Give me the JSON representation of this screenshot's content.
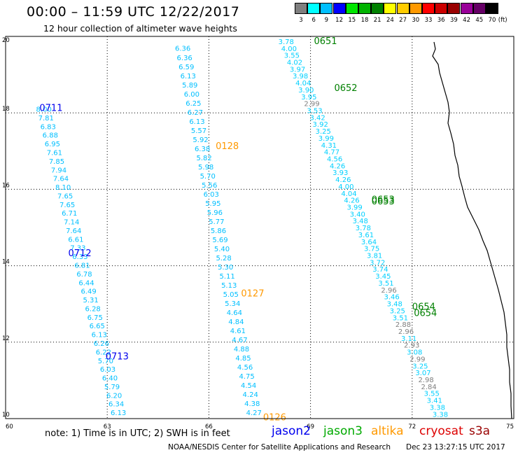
{
  "header": {
    "title": "00:00 – 11:59 UTC 12/22/2017",
    "subtitle": "12 hour collection of altimeter wave heights"
  },
  "color_scale": {
    "unit": "(ft)",
    "items": [
      {
        "label": "3",
        "color": "#7f7f7f"
      },
      {
        "label": "6",
        "color": "#00ffff"
      },
      {
        "label": "9",
        "color": "#00bfff"
      },
      {
        "label": "12",
        "color": "#0000ff"
      },
      {
        "label": "15",
        "color": "#00e600"
      },
      {
        "label": "18",
        "color": "#00b300"
      },
      {
        "label": "21",
        "color": "#008000"
      },
      {
        "label": "24",
        "color": "#ffff00"
      },
      {
        "label": "27",
        "color": "#ffcc00"
      },
      {
        "label": "30",
        "color": "#ff9900"
      },
      {
        "label": "33",
        "color": "#ff0000"
      },
      {
        "label": "36",
        "color": "#cc0000"
      },
      {
        "label": "39",
        "color": "#990000"
      },
      {
        "label": "42",
        "color": "#990099"
      },
      {
        "label": "45",
        "color": "#660066"
      },
      {
        "label": "70",
        "color": "#000000"
      }
    ]
  },
  "footer": {
    "note": "note:  1) Time is in UTC;  2) SWH is in feet",
    "credit": "NOAA/NESDIS Center for Satellite Applications and Research",
    "timestamp": "Dec 23 13:27:15 UTC 2017",
    "legend": [
      {
        "name": "jason2",
        "color": "#0000ee"
      },
      {
        "name": "jason3",
        "color": "#00aa00"
      },
      {
        "name": "altika",
        "color": "#ff9900"
      },
      {
        "name": "cryosat",
        "color": "#dd0000"
      },
      {
        "name": "s3a",
        "color": "#990000"
      }
    ]
  },
  "chart_data": {
    "type": "scatter",
    "xlim": [
      60,
      75
    ],
    "ylim": [
      10,
      20
    ],
    "x_ticks": [
      "60",
      "63",
      "66",
      "69",
      "72",
      "75"
    ],
    "y_ticks": [
      "10",
      "12",
      "14",
      "16",
      "18",
      "20"
    ],
    "grid": true,
    "colors": {
      "jason2_track": "#00bfff",
      "jason3_track": "#00d0ff",
      "dense_track": "#00ffff",
      "low_value": "#7f7f7f",
      "jason2": "#0000ee",
      "jason3": "#008000",
      "altika": "#ff9900"
    },
    "tracks": [
      {
        "satellite": "jason2",
        "values": [
          "8.00",
          "7.81",
          "6.83",
          "6.88",
          "6.95",
          "7.61",
          "7.85",
          "7.94",
          "7.64",
          "8.10",
          "7.65",
          "7.65",
          "6.71",
          "7.14",
          "7.64",
          "6.61",
          "7.33",
          "6.33",
          "6.81",
          "6.78",
          "6.44",
          "6.49",
          "5.31",
          "6.28",
          "6.75",
          "6.65",
          "6.13",
          "6.26",
          "6.22",
          "5.70",
          "6.03",
          "6.40",
          "5.79",
          "6.20",
          "6.34",
          "6.13"
        ],
        "lat_start": 18.03,
        "lat_end": 10.09,
        "lon_start": 60.9,
        "lon_end": 63.1
      },
      {
        "satellite": "altika",
        "values": [
          "6.36",
          "6.36",
          "6.59",
          "6.13",
          "5.89",
          "6.00",
          "6.25",
          "6.27",
          "6.13",
          "5.57",
          "5.92",
          "6.38",
          "5.82",
          "5.98",
          "5.70",
          "5.56",
          "6.03",
          "5.95",
          "5.96",
          "5.77",
          "5.86",
          "5.69",
          "5.40",
          "5.28",
          "5.30",
          "5.11",
          "5.13",
          "5.05",
          "5.34",
          "4.64",
          "4.84",
          "4.61",
          "4.67",
          "4.88",
          "4.85",
          "4.56",
          "4.75",
          "4.54",
          "4.24",
          "4.38",
          "4.27"
        ],
        "lat_start": 19.62,
        "lat_end": 10.09,
        "lon_start": 65.0,
        "lon_end": 67.1
      },
      {
        "satellite": "jason3",
        "values": [
          "3.78",
          "4.00",
          "3.55",
          "4.02",
          "3.97",
          "3.98",
          "4.04",
          "3.90",
          "3.95",
          "2.99",
          "3.53",
          "3.42",
          "3.92",
          "3.25",
          "3.99",
          "4.31",
          "4.77",
          "4.56",
          "4.26",
          "3.93",
          "4.26",
          "4.00",
          "4.04",
          "4.26",
          "3.99",
          "3.40",
          "3.48",
          "3.78",
          "3.61",
          "3.64",
          "3.75",
          "3.81",
          "3.72",
          "3.74",
          "3.45",
          "3.51",
          "2.96",
          "3.46",
          "3.48",
          "3.25",
          "3.51",
          "2.88",
          "2.96",
          "3.11",
          "2.93",
          "3.08",
          "2.99",
          "3.25",
          "3.07",
          "2.98",
          "2.84",
          "3.55",
          "3.41",
          "3.38",
          "3.38"
        ],
        "lat_start": 19.8,
        "lat_end": 10.05,
        "lon_start": 68.05,
        "lon_end": 72.6
      }
    ],
    "time_labels": [
      {
        "text": "0711",
        "sat": "jason2",
        "lon": 61.0,
        "lat": 18.05
      },
      {
        "text": "0712",
        "sat": "jason2",
        "lon": 61.85,
        "lat": 14.25
      },
      {
        "text": "0713",
        "sat": "jason2",
        "lon": 62.95,
        "lat": 11.55
      },
      {
        "text": "0128",
        "sat": "altika",
        "lon": 66.2,
        "lat": 17.05
      },
      {
        "text": "0127",
        "sat": "altika",
        "lon": 66.95,
        "lat": 13.2
      },
      {
        "text": "0126",
        "sat": "altika",
        "lon": 67.6,
        "lat": 9.95
      },
      {
        "text": "0651",
        "sat": "jason3",
        "lon": 69.1,
        "lat": 19.8
      },
      {
        "text": "0652",
        "sat": "jason3",
        "lon": 69.7,
        "lat": 18.57
      },
      {
        "text": "0653",
        "sat": "jason3",
        "lon": 70.8,
        "lat": 15.65
      },
      {
        "text": "0653",
        "sat": "jason3",
        "lon": 70.8,
        "lat": 15.6
      },
      {
        "text": "0654",
        "sat": "jason3",
        "lon": 72.0,
        "lat": 12.85
      },
      {
        "text": "0654",
        "sat": "jason3",
        "lon": 72.05,
        "lat": 12.68
      }
    ]
  }
}
